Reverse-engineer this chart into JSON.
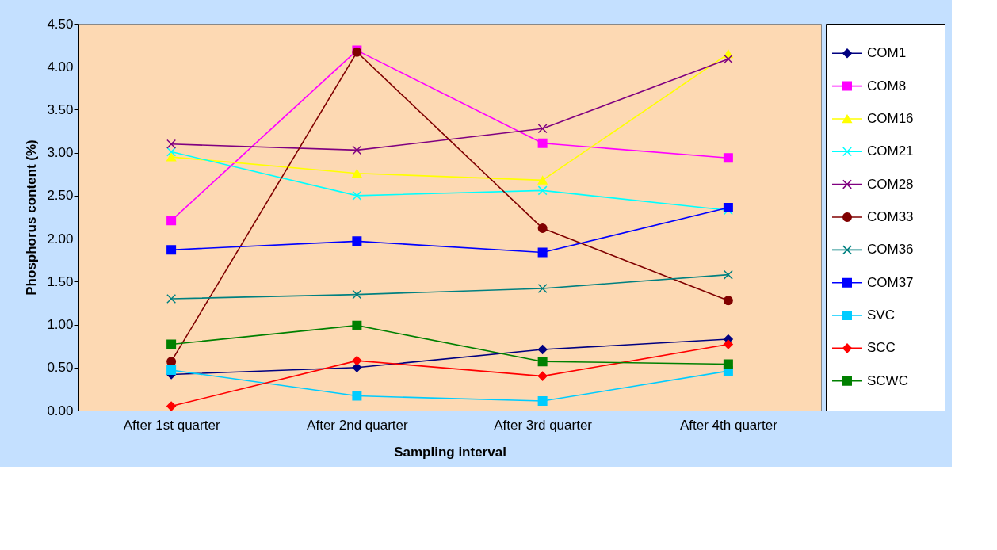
{
  "chart_data": {
    "type": "line",
    "xlabel": "Sampling interval",
    "ylabel": "Phosphorus content (%)",
    "categories": [
      "After 1st quarter",
      "After 2nd quarter",
      "After 3rd quarter",
      "After 4th quarter"
    ],
    "ylim": [
      0,
      4.5
    ],
    "yticks": [
      {
        "value": 0,
        "label": "0.00"
      },
      {
        "value": 0.5,
        "label": "0.50"
      },
      {
        "value": 1,
        "label": "1.00"
      },
      {
        "value": 1.5,
        "label": "1.50"
      },
      {
        "value": 2,
        "label": "2.00"
      },
      {
        "value": 2.5,
        "label": "2.50"
      },
      {
        "value": 3,
        "label": "3.00"
      },
      {
        "value": 3.5,
        "label": "3.50"
      },
      {
        "value": 4,
        "label": "4.00"
      },
      {
        "value": 4.5,
        "label": "4.50"
      }
    ],
    "grid": false,
    "legend": "right",
    "line_style": "solid",
    "series": [
      {
        "name": "COM1",
        "color": "#000080",
        "marker": "diamond",
        "values": [
          0.42,
          0.5,
          0.71,
          0.83
        ]
      },
      {
        "name": "COM8",
        "color": "#ff00ff",
        "marker": "square",
        "values": [
          2.21,
          4.19,
          3.11,
          2.94
        ]
      },
      {
        "name": "COM16",
        "color": "#ffff00",
        "marker": "triangle",
        "values": [
          2.95,
          2.76,
          2.68,
          4.15
        ]
      },
      {
        "name": "COM21",
        "color": "#00ffff",
        "marker": "cross",
        "values": [
          3.01,
          2.5,
          2.56,
          2.33
        ]
      },
      {
        "name": "COM28",
        "color": "#800080",
        "marker": "cross",
        "values": [
          3.1,
          3.03,
          3.28,
          4.09
        ]
      },
      {
        "name": "COM33",
        "color": "#800000",
        "marker": "circle",
        "values": [
          0.57,
          4.17,
          2.12,
          1.28
        ]
      },
      {
        "name": "COM36",
        "color": "#008080",
        "marker": "cross",
        "values": [
          1.3,
          1.35,
          1.42,
          1.58
        ]
      },
      {
        "name": "COM37",
        "color": "#0000ff",
        "marker": "square",
        "values": [
          1.87,
          1.97,
          1.84,
          2.36
        ]
      },
      {
        "name": "SVC",
        "color": "#00ccff",
        "marker": "square",
        "values": [
          0.47,
          0.17,
          0.11,
          0.46
        ]
      },
      {
        "name": "SCC",
        "color": "#ff0000",
        "marker": "diamond",
        "values": [
          0.05,
          0.58,
          0.4,
          0.77
        ]
      },
      {
        "name": "SCWC",
        "color": "#008000",
        "marker": "square",
        "values": [
          0.77,
          0.99,
          0.57,
          0.54
        ]
      }
    ]
  }
}
